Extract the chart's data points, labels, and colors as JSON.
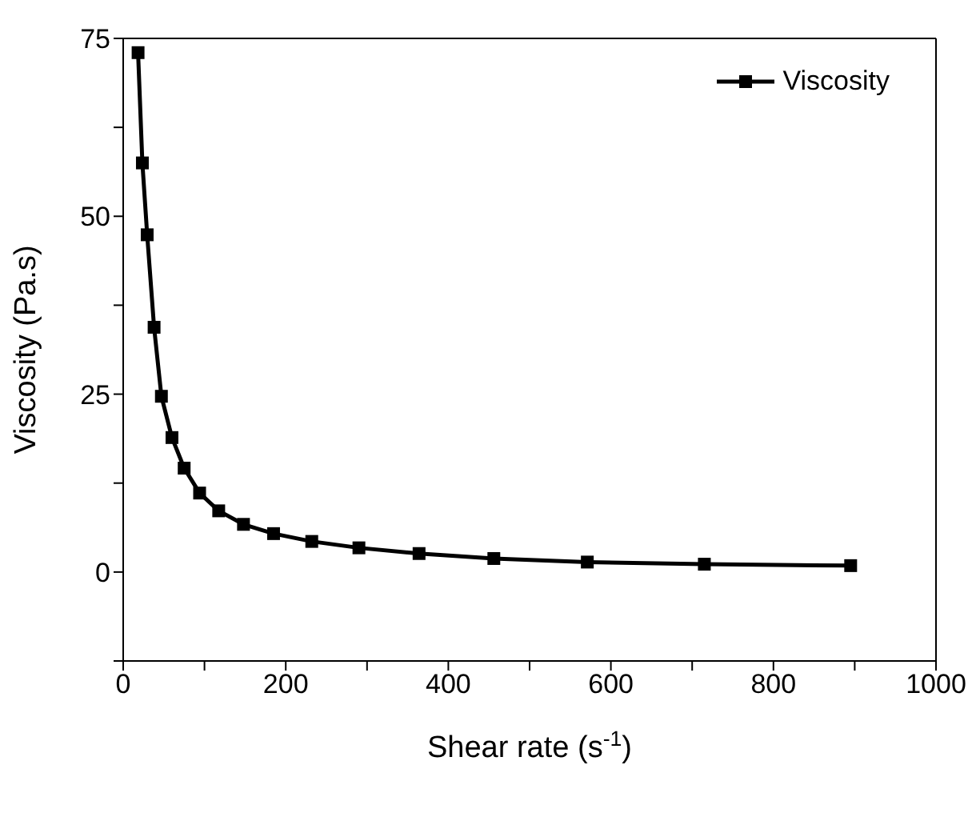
{
  "chart_data": {
    "type": "line",
    "xlabel": "Shear rate (s$^{-1}$)",
    "ylabel": "Viscosity (Pa.s)",
    "x": [
      18.3,
      23.6,
      29.5,
      38,
      47,
      60,
      75,
      94,
      117.5,
      148,
      185,
      232,
      290,
      364,
      456,
      571,
      715,
      895
    ],
    "series": [
      {
        "name": "Viscosity",
        "color": "#000000",
        "values": [
          73,
          57.5,
          47.4,
          34.4,
          24.7,
          18.9,
          14.6,
          11.1,
          8.6,
          6.7,
          5.4,
          4.3,
          3.4,
          2.6,
          1.9,
          1.4,
          1.1,
          0.9
        ]
      }
    ],
    "xlim": [
      0,
      1000
    ],
    "xticks": [
      0,
      {
        "value": 100,
        "label": null
      },
      200,
      {
        "value": 300,
        "label": null
      },
      400,
      {
        "value": 500,
        "label": null
      },
      600,
      {
        "value": 700,
        "label": null
      },
      800,
      {
        "value": 900,
        "label": null
      },
      1000
    ],
    "ylim": [
      -12.5,
      75
    ],
    "yticks": [
      {
        "value": -12.5,
        "label": null
      },
      0,
      {
        "value": 12.5,
        "label": null
      },
      25,
      {
        "value": 37.5,
        "label": null
      },
      50,
      {
        "value": 62.5,
        "label": null
      },
      75
    ],
    "legend": "top right",
    "marker": "square",
    "line_style": "solid",
    "grid": false
  }
}
